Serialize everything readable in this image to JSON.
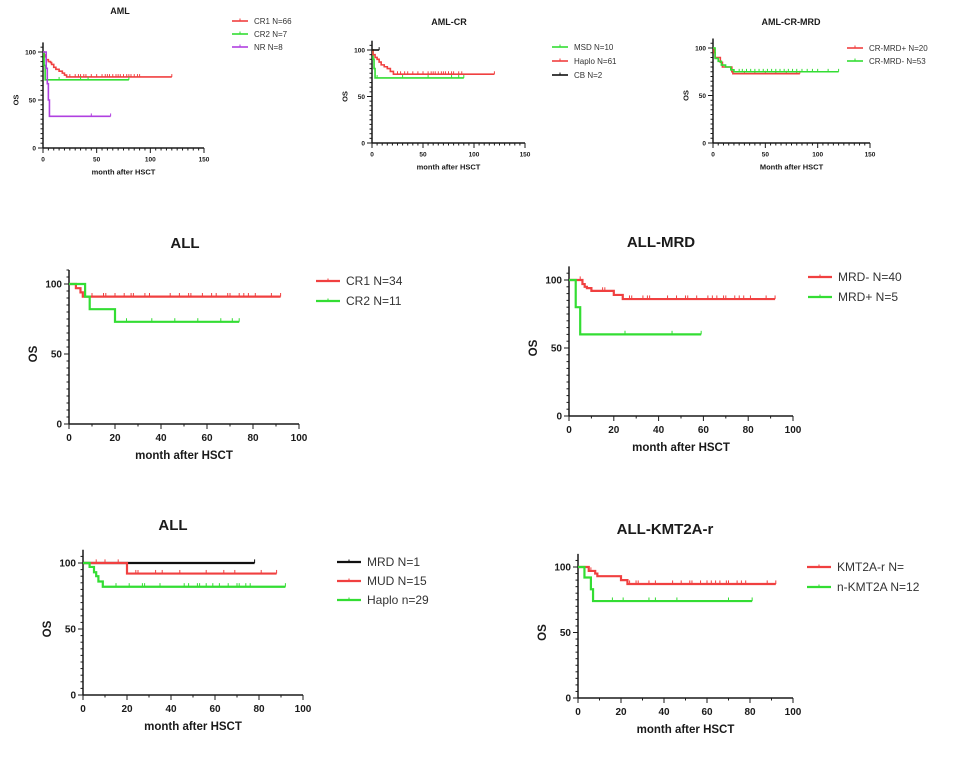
{
  "colors": {
    "red": "#f04040",
    "green": "#33dd33",
    "purple": "#b040e0",
    "black": "#111111",
    "axis": "#1a1a1a"
  },
  "chart_data": [
    {
      "id": "aml",
      "type": "line",
      "subtype": "kaplan-meier",
      "title": "AML",
      "xlabel": "month after HSCT",
      "ylabel": "OS",
      "xlim": [
        0,
        150
      ],
      "ylim": [
        0,
        100
      ],
      "xticks": [
        0,
        50,
        100,
        150
      ],
      "yticks": [
        0,
        50,
        100
      ],
      "legend_position": "right",
      "series": [
        {
          "name": "CR1 N=66",
          "color": "red",
          "steps": [
            [
              0,
              100
            ],
            [
              1,
              97
            ],
            [
              2,
              95
            ],
            [
              3,
              92
            ],
            [
              5,
              90
            ],
            [
              7,
              89
            ],
            [
              8,
              87
            ],
            [
              10,
              84
            ],
            [
              12,
              82
            ],
            [
              15,
              80
            ],
            [
              18,
              78
            ],
            [
              20,
              76
            ],
            [
              22,
              74
            ],
            [
              120,
              74
            ]
          ],
          "censored": [
            25,
            30,
            33,
            35,
            38,
            40,
            45,
            50,
            55,
            58,
            60,
            62,
            65,
            68,
            70,
            72,
            75,
            78,
            80,
            82,
            85,
            88,
            90,
            120
          ]
        },
        {
          "name": "CR2 N=7",
          "color": "green",
          "steps": [
            [
              0,
              100
            ],
            [
              1,
              86
            ],
            [
              2,
              71
            ],
            [
              80,
              71
            ]
          ],
          "censored": [
            15,
            35,
            42,
            80
          ]
        },
        {
          "name": "NR N=8",
          "color": "purple",
          "steps": [
            [
              0,
              100
            ],
            [
              3,
              83
            ],
            [
              4,
              67
            ],
            [
              5,
              50
            ],
            [
              6,
              33
            ],
            [
              63,
              33
            ]
          ],
          "censored": [
            45,
            63
          ]
        }
      ]
    },
    {
      "id": "aml-cr",
      "type": "line",
      "subtype": "kaplan-meier",
      "title": "AML-CR",
      "xlabel": "month after HSCT",
      "ylabel": "OS",
      "xlim": [
        0,
        150
      ],
      "ylim": [
        0,
        100
      ],
      "xticks": [
        0,
        50,
        100,
        150
      ],
      "yticks": [
        0,
        50,
        100
      ],
      "legend_position": "right",
      "series": [
        {
          "name": "MSD   N=10",
          "color": "green",
          "steps": [
            [
              0,
              100
            ],
            [
              1,
              90
            ],
            [
              2,
              80
            ],
            [
              3,
              70
            ],
            [
              90,
              70
            ]
          ],
          "censored": [
            5,
            30,
            55,
            78,
            85,
            90
          ]
        },
        {
          "name": "Haplo  N=61",
          "color": "red",
          "steps": [
            [
              0,
              100
            ],
            [
              1,
              95
            ],
            [
              3,
              92
            ],
            [
              5,
              90
            ],
            [
              7,
              87
            ],
            [
              9,
              84
            ],
            [
              12,
              82
            ],
            [
              15,
              80
            ],
            [
              18,
              77
            ],
            [
              21,
              74
            ],
            [
              120,
              74
            ]
          ],
          "censored": [
            25,
            28,
            32,
            35,
            40,
            45,
            50,
            55,
            58,
            60,
            62,
            65,
            68,
            70,
            72,
            75,
            78,
            80,
            85,
            88,
            120
          ]
        },
        {
          "name": "CB      N=2",
          "color": "black",
          "steps": [
            [
              0,
              100
            ],
            [
              7,
              100
            ]
          ],
          "censored": [
            7
          ]
        }
      ]
    },
    {
      "id": "aml-cr-mrd",
      "type": "line",
      "subtype": "kaplan-meier",
      "title": "AML-CR-MRD",
      "xlabel": "Month after HSCT",
      "ylabel": "OS",
      "xlim": [
        0,
        150
      ],
      "ylim": [
        0,
        100
      ],
      "xticks": [
        0,
        50,
        100,
        150
      ],
      "yticks": [
        0,
        50,
        100
      ],
      "legend_position": "top-right",
      "series": [
        {
          "name": "CR-MRD+  N=20",
          "color": "red",
          "steps": [
            [
              0,
              100
            ],
            [
              1,
              95
            ],
            [
              2,
              90
            ],
            [
              7,
              85
            ],
            [
              9,
              80
            ],
            [
              16,
              80
            ],
            [
              18,
              75
            ],
            [
              19,
              73
            ],
            [
              83,
              73
            ]
          ],
          "censored": [
            30,
            40,
            50,
            60,
            70,
            80,
            83
          ]
        },
        {
          "name": "CR-MRD-   N=53",
          "color": "green",
          "steps": [
            [
              0,
              100
            ],
            [
              2,
              89
            ],
            [
              5,
              86
            ],
            [
              8,
              82
            ],
            [
              12,
              80
            ],
            [
              17,
              77
            ],
            [
              20,
              75
            ],
            [
              120,
              75
            ]
          ],
          "censored": [
            25,
            28,
            32,
            36,
            40,
            44,
            48,
            52,
            56,
            60,
            64,
            68,
            72,
            76,
            80,
            85,
            90,
            95,
            100,
            110,
            120
          ]
        }
      ]
    },
    {
      "id": "all-cr",
      "type": "line",
      "subtype": "kaplan-meier",
      "title": "ALL",
      "xlabel": "month after HSCT",
      "ylabel": "OS",
      "xlim": [
        0,
        100
      ],
      "ylim": [
        0,
        100
      ],
      "xticks": [
        0,
        20,
        40,
        60,
        80,
        100
      ],
      "yticks": [
        0,
        50,
        100
      ],
      "legend_position": "right",
      "series": [
        {
          "name": "CR1 N=34",
          "color": "red",
          "steps": [
            [
              0,
              100
            ],
            [
              3,
              97
            ],
            [
              5,
              94
            ],
            [
              6,
              91
            ],
            [
              92,
              91
            ]
          ],
          "censored": [
            10,
            15,
            16,
            20,
            24,
            27,
            28,
            33,
            35,
            44,
            48,
            52,
            53,
            58,
            62,
            64,
            69,
            70,
            74,
            76,
            78,
            81,
            88,
            92
          ]
        },
        {
          "name": "CR2 N=11",
          "color": "green",
          "steps": [
            [
              0,
              100
            ],
            [
              7,
              91
            ],
            [
              9,
              82
            ],
            [
              20,
              73
            ],
            [
              74,
              73
            ]
          ],
          "censored": [
            25,
            36,
            46,
            56,
            66,
            71,
            74
          ]
        }
      ]
    },
    {
      "id": "all-mrd",
      "type": "line",
      "subtype": "kaplan-meier",
      "title": "ALL-MRD",
      "xlabel": "month after HSCT",
      "ylabel": "OS",
      "xlim": [
        0,
        100
      ],
      "ylim": [
        0,
        100
      ],
      "xticks": [
        0,
        20,
        40,
        60,
        80,
        100
      ],
      "yticks": [
        0,
        50,
        100
      ],
      "legend_position": "right",
      "series": [
        {
          "name": "MRD- N=40",
          "color": "red",
          "steps": [
            [
              0,
              100
            ],
            [
              6,
              97
            ],
            [
              7,
              95
            ],
            [
              8,
              94
            ],
            [
              10,
              92
            ],
            [
              20,
              89
            ],
            [
              24,
              86
            ],
            [
              92,
              86
            ]
          ],
          "censored": [
            5,
            15,
            16,
            27,
            28,
            33,
            35,
            36,
            44,
            48,
            52,
            53,
            57,
            62,
            64,
            66,
            69,
            70,
            74,
            76,
            78,
            81,
            88,
            92
          ]
        },
        {
          "name": "MRD+ N=5",
          "color": "green",
          "steps": [
            [
              0,
              100
            ],
            [
              3,
              80
            ],
            [
              5,
              60
            ],
            [
              59,
              60
            ]
          ],
          "censored": [
            25,
            46,
            59
          ]
        }
      ]
    },
    {
      "id": "all-donor",
      "type": "line",
      "subtype": "kaplan-meier",
      "title": "ALL",
      "xlabel": "month after HSCT",
      "ylabel": "OS",
      "xlim": [
        0,
        100
      ],
      "ylim": [
        0,
        100
      ],
      "xticks": [
        0,
        20,
        40,
        60,
        80,
        100
      ],
      "yticks": [
        0,
        50,
        100
      ],
      "legend_position": "right",
      "series": [
        {
          "name": "MRD N=1",
          "color": "black",
          "steps": [
            [
              0,
              100
            ],
            [
              78,
              100
            ]
          ],
          "censored": [
            78
          ]
        },
        {
          "name": "MUD N=15",
          "color": "red",
          "steps": [
            [
              0,
              100
            ],
            [
              20,
              92
            ],
            [
              88,
              92
            ]
          ],
          "censored": [
            6,
            10,
            16,
            24,
            25,
            33,
            36,
            44,
            56,
            64,
            69,
            81,
            88
          ]
        },
        {
          "name": "Haplo n=29",
          "color": "green",
          "steps": [
            [
              0,
              100
            ],
            [
              3,
              97
            ],
            [
              5,
              93
            ],
            [
              6,
              90
            ],
            [
              7,
              86
            ],
            [
              9,
              82
            ],
            [
              92,
              82
            ]
          ],
          "censored": [
            15,
            21,
            27,
            28,
            35,
            46,
            48,
            52,
            53,
            56,
            59,
            62,
            66,
            70,
            71,
            74,
            76,
            92
          ]
        }
      ]
    },
    {
      "id": "all-kmt2a",
      "type": "line",
      "subtype": "kaplan-meier",
      "title": "ALL-KMT2A-r",
      "xlabel": "month after HSCT",
      "ylabel": "OS",
      "xlim": [
        0,
        100
      ],
      "ylim": [
        0,
        100
      ],
      "xticks": [
        0,
        20,
        40,
        60,
        80,
        100
      ],
      "yticks": [
        0,
        50,
        100
      ],
      "legend_position": "right",
      "series": [
        {
          "name": "KMT2A-r  N=",
          "color": "red",
          "steps": [
            [
              0,
              100
            ],
            [
              5,
              97
            ],
            [
              8,
              95
            ],
            [
              9,
              93
            ],
            [
              20,
              90
            ],
            [
              23,
              87
            ],
            [
              92,
              87
            ]
          ],
          "censored": [
            6,
            24,
            27,
            28,
            33,
            36,
            44,
            48,
            52,
            53,
            57,
            60,
            62,
            64,
            66,
            69,
            70,
            74,
            76,
            78,
            88,
            92
          ]
        },
        {
          "name": "n-KMT2A  N=12",
          "color": "green",
          "steps": [
            [
              0,
              100
            ],
            [
              3,
              92
            ],
            [
              6,
              83
            ],
            [
              7,
              74
            ],
            [
              81,
              74
            ]
          ],
          "censored": [
            16,
            21,
            33,
            36,
            46,
            70,
            81
          ]
        }
      ]
    }
  ]
}
